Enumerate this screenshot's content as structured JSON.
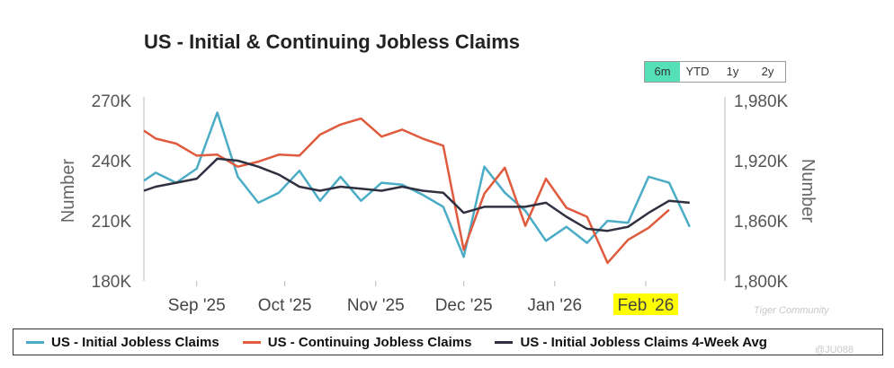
{
  "title": "US - Initial & Continuing Jobless Claims",
  "range_tabs": [
    {
      "label": "6m",
      "active": true
    },
    {
      "label": "YTD",
      "active": false
    },
    {
      "label": "1y",
      "active": false
    },
    {
      "label": "2y",
      "active": false
    }
  ],
  "watermark": {
    "brand": "Tiger Community",
    "user": "@JU088"
  },
  "colors": {
    "initial": "#4bacc6",
    "continuing": "#e05a3e",
    "avg": "#303040",
    "highlight": "#ffff00"
  },
  "chart_data": {
    "type": "line",
    "title": "US - Initial & Continuing Jobless Claims",
    "left_axis": {
      "label": "Number",
      "min": 180000,
      "max": 270000,
      "ticks": [
        180000,
        210000,
        240000,
        270000
      ],
      "tick_labels": [
        "180K",
        "210K",
        "240K",
        "270K"
      ]
    },
    "right_axis": {
      "label": "Number",
      "min": 1800000,
      "max": 1980000,
      "ticks": [
        1800000,
        1860000,
        1920000,
        1980000
      ],
      "tick_labels": [
        "1,800K",
        "1,860K",
        "1,920K",
        "1,980K"
      ]
    },
    "x_ticks": [
      {
        "label": "Sep '25",
        "date": "2025-09-01",
        "highlight": false
      },
      {
        "label": "Oct '25",
        "date": "2025-10-01",
        "highlight": false
      },
      {
        "label": "Nov '25",
        "date": "2025-11-01",
        "highlight": false
      },
      {
        "label": "Dec '25",
        "date": "2025-12-01",
        "highlight": false
      },
      {
        "label": "Jan '26",
        "date": "2026-01-01",
        "highlight": false
      },
      {
        "label": "Feb '26",
        "date": "2026-02-01",
        "highlight": true
      }
    ],
    "x_range": [
      "2025-08-14",
      "2026-02-28"
    ],
    "grid": false,
    "legend_position": "bottom",
    "series": [
      {
        "name": "US - Initial Jobless Claims",
        "axis": "left",
        "color": "#4bacc6",
        "points": [
          [
            "2025-08-14",
            230000
          ],
          [
            "2025-08-18",
            234000
          ],
          [
            "2025-08-25",
            229000
          ],
          [
            "2025-09-01",
            236000
          ],
          [
            "2025-09-08",
            264000
          ],
          [
            "2025-09-15",
            232000
          ],
          [
            "2025-09-22",
            219000
          ],
          [
            "2025-09-29",
            224000
          ],
          [
            "2025-10-06",
            235000
          ],
          [
            "2025-10-13",
            220000
          ],
          [
            "2025-10-20",
            232000
          ],
          [
            "2025-10-27",
            220000
          ],
          [
            "2025-11-03",
            229000
          ],
          [
            "2025-11-10",
            228000
          ],
          [
            "2025-11-17",
            223000
          ],
          [
            "2025-11-24",
            217000
          ],
          [
            "2025-12-01",
            192000
          ],
          [
            "2025-12-08",
            237000
          ],
          [
            "2025-12-15",
            224000
          ],
          [
            "2025-12-22",
            215000
          ],
          [
            "2025-12-29",
            200000
          ],
          [
            "2026-01-05",
            207000
          ],
          [
            "2026-01-12",
            199000
          ],
          [
            "2026-01-19",
            210000
          ],
          [
            "2026-01-26",
            209000
          ],
          [
            "2026-02-02",
            232000
          ],
          [
            "2026-02-09",
            229000
          ],
          [
            "2026-02-16",
            207000
          ]
        ]
      },
      {
        "name": "US - Continuing Jobless Claims",
        "axis": "right",
        "color": "#e05a3e",
        "points": [
          [
            "2025-08-14",
            1950000
          ],
          [
            "2025-08-18",
            1942000
          ],
          [
            "2025-08-25",
            1937000
          ],
          [
            "2025-09-01",
            1925000
          ],
          [
            "2025-09-08",
            1926000
          ],
          [
            "2025-09-15",
            1914000
          ],
          [
            "2025-09-22",
            1919000
          ],
          [
            "2025-09-29",
            1926000
          ],
          [
            "2025-10-06",
            1925000
          ],
          [
            "2025-10-13",
            1946000
          ],
          [
            "2025-10-20",
            1956000
          ],
          [
            "2025-10-27",
            1962000
          ],
          [
            "2025-11-03",
            1944000
          ],
          [
            "2025-11-10",
            1951000
          ],
          [
            "2025-11-17",
            1942000
          ],
          [
            "2025-11-24",
            1935000
          ],
          [
            "2025-12-01",
            1831000
          ],
          [
            "2025-12-08",
            1887000
          ],
          [
            "2025-12-15",
            1913000
          ],
          [
            "2025-12-22",
            1855000
          ],
          [
            "2025-12-29",
            1902000
          ],
          [
            "2026-01-05",
            1873000
          ],
          [
            "2026-01-12",
            1864000
          ],
          [
            "2026-01-19",
            1818000
          ],
          [
            "2026-01-26",
            1841000
          ],
          [
            "2026-02-02",
            1853000
          ],
          [
            "2026-02-09",
            1871000
          ]
        ]
      },
      {
        "name": "US - Initial Jobless Claims 4-Week Avg",
        "axis": "left",
        "color": "#303040",
        "points": [
          [
            "2025-08-14",
            225000
          ],
          [
            "2025-08-18",
            227000
          ],
          [
            "2025-08-25",
            229000
          ],
          [
            "2025-09-01",
            231000
          ],
          [
            "2025-09-08",
            241000
          ],
          [
            "2025-09-15",
            240000
          ],
          [
            "2025-09-22",
            237000
          ],
          [
            "2025-09-29",
            233000
          ],
          [
            "2025-10-06",
            227000
          ],
          [
            "2025-10-13",
            225000
          ],
          [
            "2025-10-20",
            227000
          ],
          [
            "2025-10-27",
            226000
          ],
          [
            "2025-11-03",
            225000
          ],
          [
            "2025-11-10",
            227000
          ],
          [
            "2025-11-17",
            225000
          ],
          [
            "2025-11-24",
            224000
          ],
          [
            "2025-12-01",
            214000
          ],
          [
            "2025-12-08",
            217000
          ],
          [
            "2025-12-15",
            217000
          ],
          [
            "2025-12-22",
            217000
          ],
          [
            "2025-12-29",
            219000
          ],
          [
            "2026-01-05",
            212000
          ],
          [
            "2026-01-12",
            206000
          ],
          [
            "2026-01-19",
            205000
          ],
          [
            "2026-01-26",
            207000
          ],
          [
            "2026-02-02",
            214000
          ],
          [
            "2026-02-09",
            220000
          ],
          [
            "2026-02-16",
            219000
          ]
        ]
      }
    ]
  }
}
